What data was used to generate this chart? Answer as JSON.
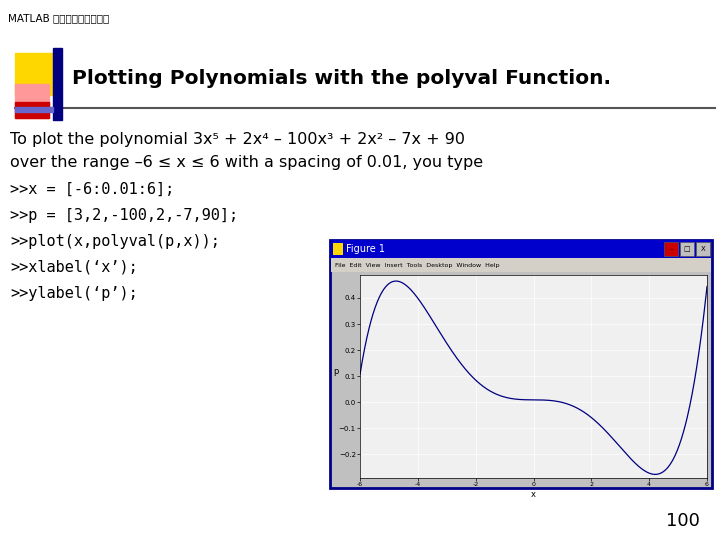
{
  "slide_bg": "#ffffff",
  "header_text": "MATLAB 程式設計與工程應用",
  "title": "Plotting Polynomials with the polyval Function.",
  "body_line1": "To plot the polynomial 3x⁵ + 2x⁴ – 100x³ + 2x² – 7x + 90",
  "body_line2": "over the range –6 ≤ x ≤ 6 with a spacing of 0.01, you type",
  "code_lines": [
    ">>x = [-6:0.01:6];",
    ">>p = [3,2,-100,2,-7,90];",
    ">>plot(x,polyval(p,x));",
    ">>xlabel(‘x’);",
    ">>ylabel(‘p’);"
  ],
  "page_number": "100",
  "poly_coeffs": [
    3,
    2,
    -100,
    2,
    -7,
    90
  ],
  "x_range": [
    -6,
    6
  ],
  "x_step": 0.01,
  "gold_color": "#FFD700",
  "red_color": "#CC0000",
  "pink_color": "#FF9999",
  "blue_bar_color": "#000080",
  "title_line_color": "#333333",
  "matlab_window_bg": "#c0c0c0",
  "matlab_titlebar_color": "#0000CC",
  "matlab_plot_bg": "#f0f0f0",
  "plot_line_color": "#000080"
}
